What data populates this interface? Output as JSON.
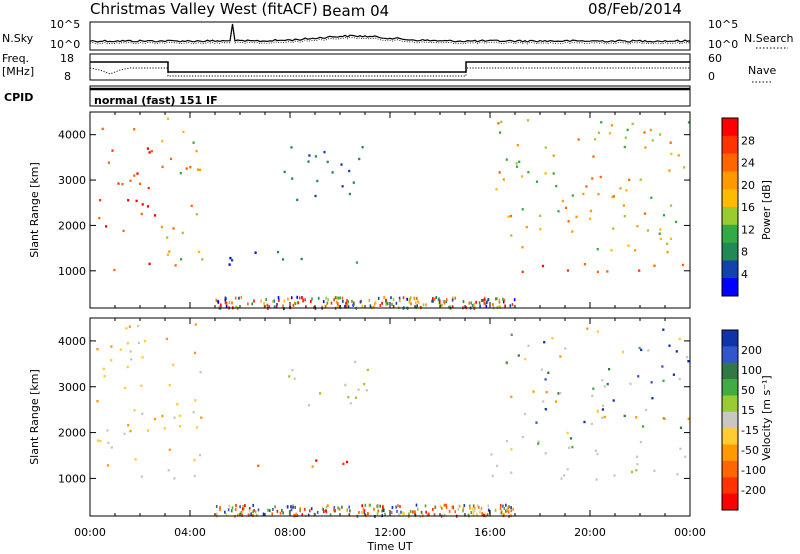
{
  "header": {
    "station": "Christmas Valley West (fitACF)",
    "beam": "Beam 04",
    "date": "08/Feb/2014"
  },
  "noise_panel": {
    "left_label": "N.Sky",
    "left_ticks": [
      "10^5",
      "10^0"
    ],
    "right_ticks": [
      "10^5",
      "10^0"
    ],
    "right_label": "N.Search"
  },
  "freq_panel": {
    "left_label_1": "Freq.",
    "left_label_2": "[MHz]",
    "left_ticks": [
      "18",
      "8"
    ],
    "right_ticks": [
      "60",
      "0"
    ],
    "right_label": "Nave"
  },
  "cpid": {
    "label": "CPID",
    "program": "normal (fast) 151 IF"
  },
  "chart_data": [
    {
      "type": "heatmap",
      "name": "power",
      "ylabel": "Slant Range [km]",
      "xlabel": "",
      "x_ticks": [
        "00:00",
        "04:00",
        "08:00",
        "12:00",
        "16:00",
        "20:00",
        "00:00"
      ],
      "y_ticks": [
        "1000",
        "2000",
        "3000",
        "4000"
      ],
      "xlim_hours": [
        0,
        24
      ],
      "ylim_km": [
        180,
        4500
      ],
      "colorbar": {
        "label": "Power [dB]",
        "ticks": [
          "28",
          "24",
          "20",
          "16",
          "12",
          "8",
          "4"
        ],
        "colors": [
          "#ff0000",
          "#ff3300",
          "#ff6600",
          "#ff9900",
          "#ffbb00",
          "#99cc33",
          "#33aa44",
          "#228855",
          "#1144aa",
          "#0000ff"
        ]
      },
      "features": [
        {
          "t": [
            0.5,
            4.0
          ],
          "range_km": [
            1000,
            1200
          ],
          "level": "high"
        },
        {
          "t": [
            0.2,
            2.8
          ],
          "range_km": [
            1800,
            4200
          ],
          "level": "high"
        },
        {
          "t": [
            2.8,
            4.6
          ],
          "range_km": [
            1100,
            4400
          ],
          "level": "mid"
        },
        {
          "t": [
            5.0,
            12.0
          ],
          "range_km": [
            1150,
            1450
          ],
          "level": "low-mid"
        },
        {
          "t": [
            7.2,
            11.0
          ],
          "range_km": [
            2500,
            3800
          ],
          "level": "low"
        },
        {
          "t": [
            16.0,
            24.0
          ],
          "range_km": [
            1000,
            1300
          ],
          "level": "high"
        },
        {
          "t": [
            16.2,
            24.0
          ],
          "range_km": [
            1400,
            4400
          ],
          "level": "mid"
        }
      ]
    },
    {
      "type": "heatmap",
      "name": "velocity",
      "ylabel": "Slant Range [km]",
      "xlabel": "Time UT",
      "x_ticks": [
        "00:00",
        "04:00",
        "08:00",
        "12:00",
        "16:00",
        "20:00",
        "00:00"
      ],
      "y_ticks": [
        "1000",
        "2000",
        "3000",
        "4000"
      ],
      "xlim_hours": [
        0,
        24
      ],
      "ylim_km": [
        180,
        4500
      ],
      "colorbar": {
        "label": "Velocity [m s⁻¹]",
        "ticks": [
          "200",
          "100",
          "50",
          "15",
          "-15",
          "-50",
          "-100",
          "-200"
        ],
        "colors": [
          "#1133aa",
          "#3355cc",
          "#337744",
          "#44aa44",
          "#99cc33",
          "#c8c8c0",
          "#ffcc33",
          "#ff9900",
          "#ff6600",
          "#ff3300",
          "#ff0000"
        ]
      },
      "features": [
        {
          "t": [
            0.3,
            4.2
          ],
          "range_km": [
            1000,
            1250
          ],
          "level": "ground"
        },
        {
          "t": [
            0.2,
            4.6
          ],
          "range_km": [
            1300,
            4400
          ],
          "level": "negative"
        },
        {
          "t": [
            6.0,
            12.5
          ],
          "range_km": [
            1250,
            1450
          ],
          "level": "strong-negative"
        },
        {
          "t": [
            7.5,
            11.2
          ],
          "range_km": [
            2600,
            3600
          ],
          "level": "ground"
        },
        {
          "t": [
            16.0,
            24.0
          ],
          "range_km": [
            1000,
            1600
          ],
          "level": "ground"
        },
        {
          "t": [
            16.5,
            24.0
          ],
          "range_km": [
            1600,
            4300
          ],
          "level": "mixed"
        }
      ]
    }
  ]
}
